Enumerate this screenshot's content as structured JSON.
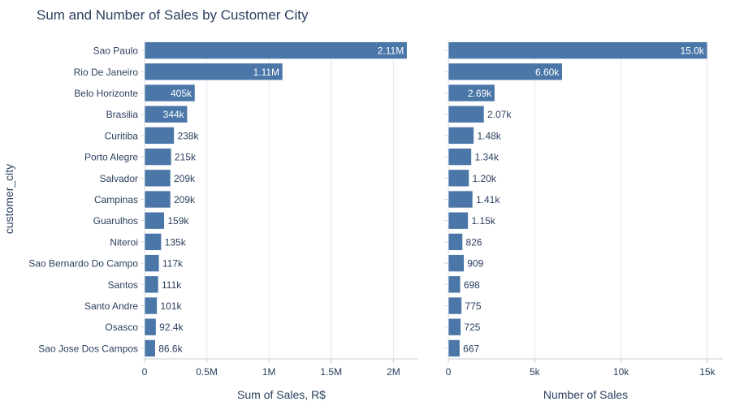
{
  "chart_data": [
    {
      "type": "bar",
      "orientation": "horizontal",
      "title": "Sum and Number of Sales by Customer City",
      "ylabel": "customer_city",
      "xlabel": "Sum of Sales, R$",
      "categories": [
        "Sao Paulo",
        "Rio De Janeiro",
        "Belo Horizonte",
        "Brasilia",
        "Curitiba",
        "Porto Alegre",
        "Salvador",
        "Campinas",
        "Guarulhos",
        "Niteroi",
        "Sao Bernardo Do Campo",
        "Santos",
        "Santo Andre",
        "Osasco",
        "Sao Jose Dos Campos"
      ],
      "values": [
        2110000,
        1110000,
        405000,
        344000,
        238000,
        215000,
        209000,
        209000,
        159000,
        135000,
        117000,
        111000,
        101000,
        92400,
        86600
      ],
      "data_labels": [
        "2.11M",
        "1.11M",
        "405k",
        "344k",
        "238k",
        "215k",
        "209k",
        "209k",
        "159k",
        "135k",
        "117k",
        "111k",
        "101k",
        "92.4k",
        "86.6k"
      ],
      "xlim": [
        0,
        2200000
      ],
      "xticks": [
        0,
        500000,
        1000000,
        1500000,
        2000000
      ],
      "xtick_labels": [
        "0",
        "0.5M",
        "1M",
        "1.5M",
        "2M"
      ],
      "bar_color": "#4a76a8"
    },
    {
      "type": "bar",
      "orientation": "horizontal",
      "xlabel": "Number of Sales",
      "categories": [
        "Sao Paulo",
        "Rio De Janeiro",
        "Belo Horizonte",
        "Brasilia",
        "Curitiba",
        "Porto Alegre",
        "Salvador",
        "Campinas",
        "Guarulhos",
        "Niteroi",
        "Sao Bernardo Do Campo",
        "Santos",
        "Santo Andre",
        "Osasco",
        "Sao Jose Dos Campos"
      ],
      "values": [
        15000,
        6600,
        2690,
        2070,
        1480,
        1340,
        1200,
        1410,
        1150,
        826,
        909,
        698,
        775,
        725,
        667
      ],
      "data_labels": [
        "15.0k",
        "6.60k",
        "2.69k",
        "2.07k",
        "1.48k",
        "1.34k",
        "1.20k",
        "1.41k",
        "1.15k",
        "826",
        "909",
        "698",
        "775",
        "725",
        "667"
      ],
      "xlim": [
        0,
        15900
      ],
      "xticks": [
        0,
        5000,
        10000,
        15000
      ],
      "xtick_labels": [
        "0",
        "5k",
        "10k",
        "15k"
      ],
      "bar_color": "#4a76a8"
    }
  ]
}
